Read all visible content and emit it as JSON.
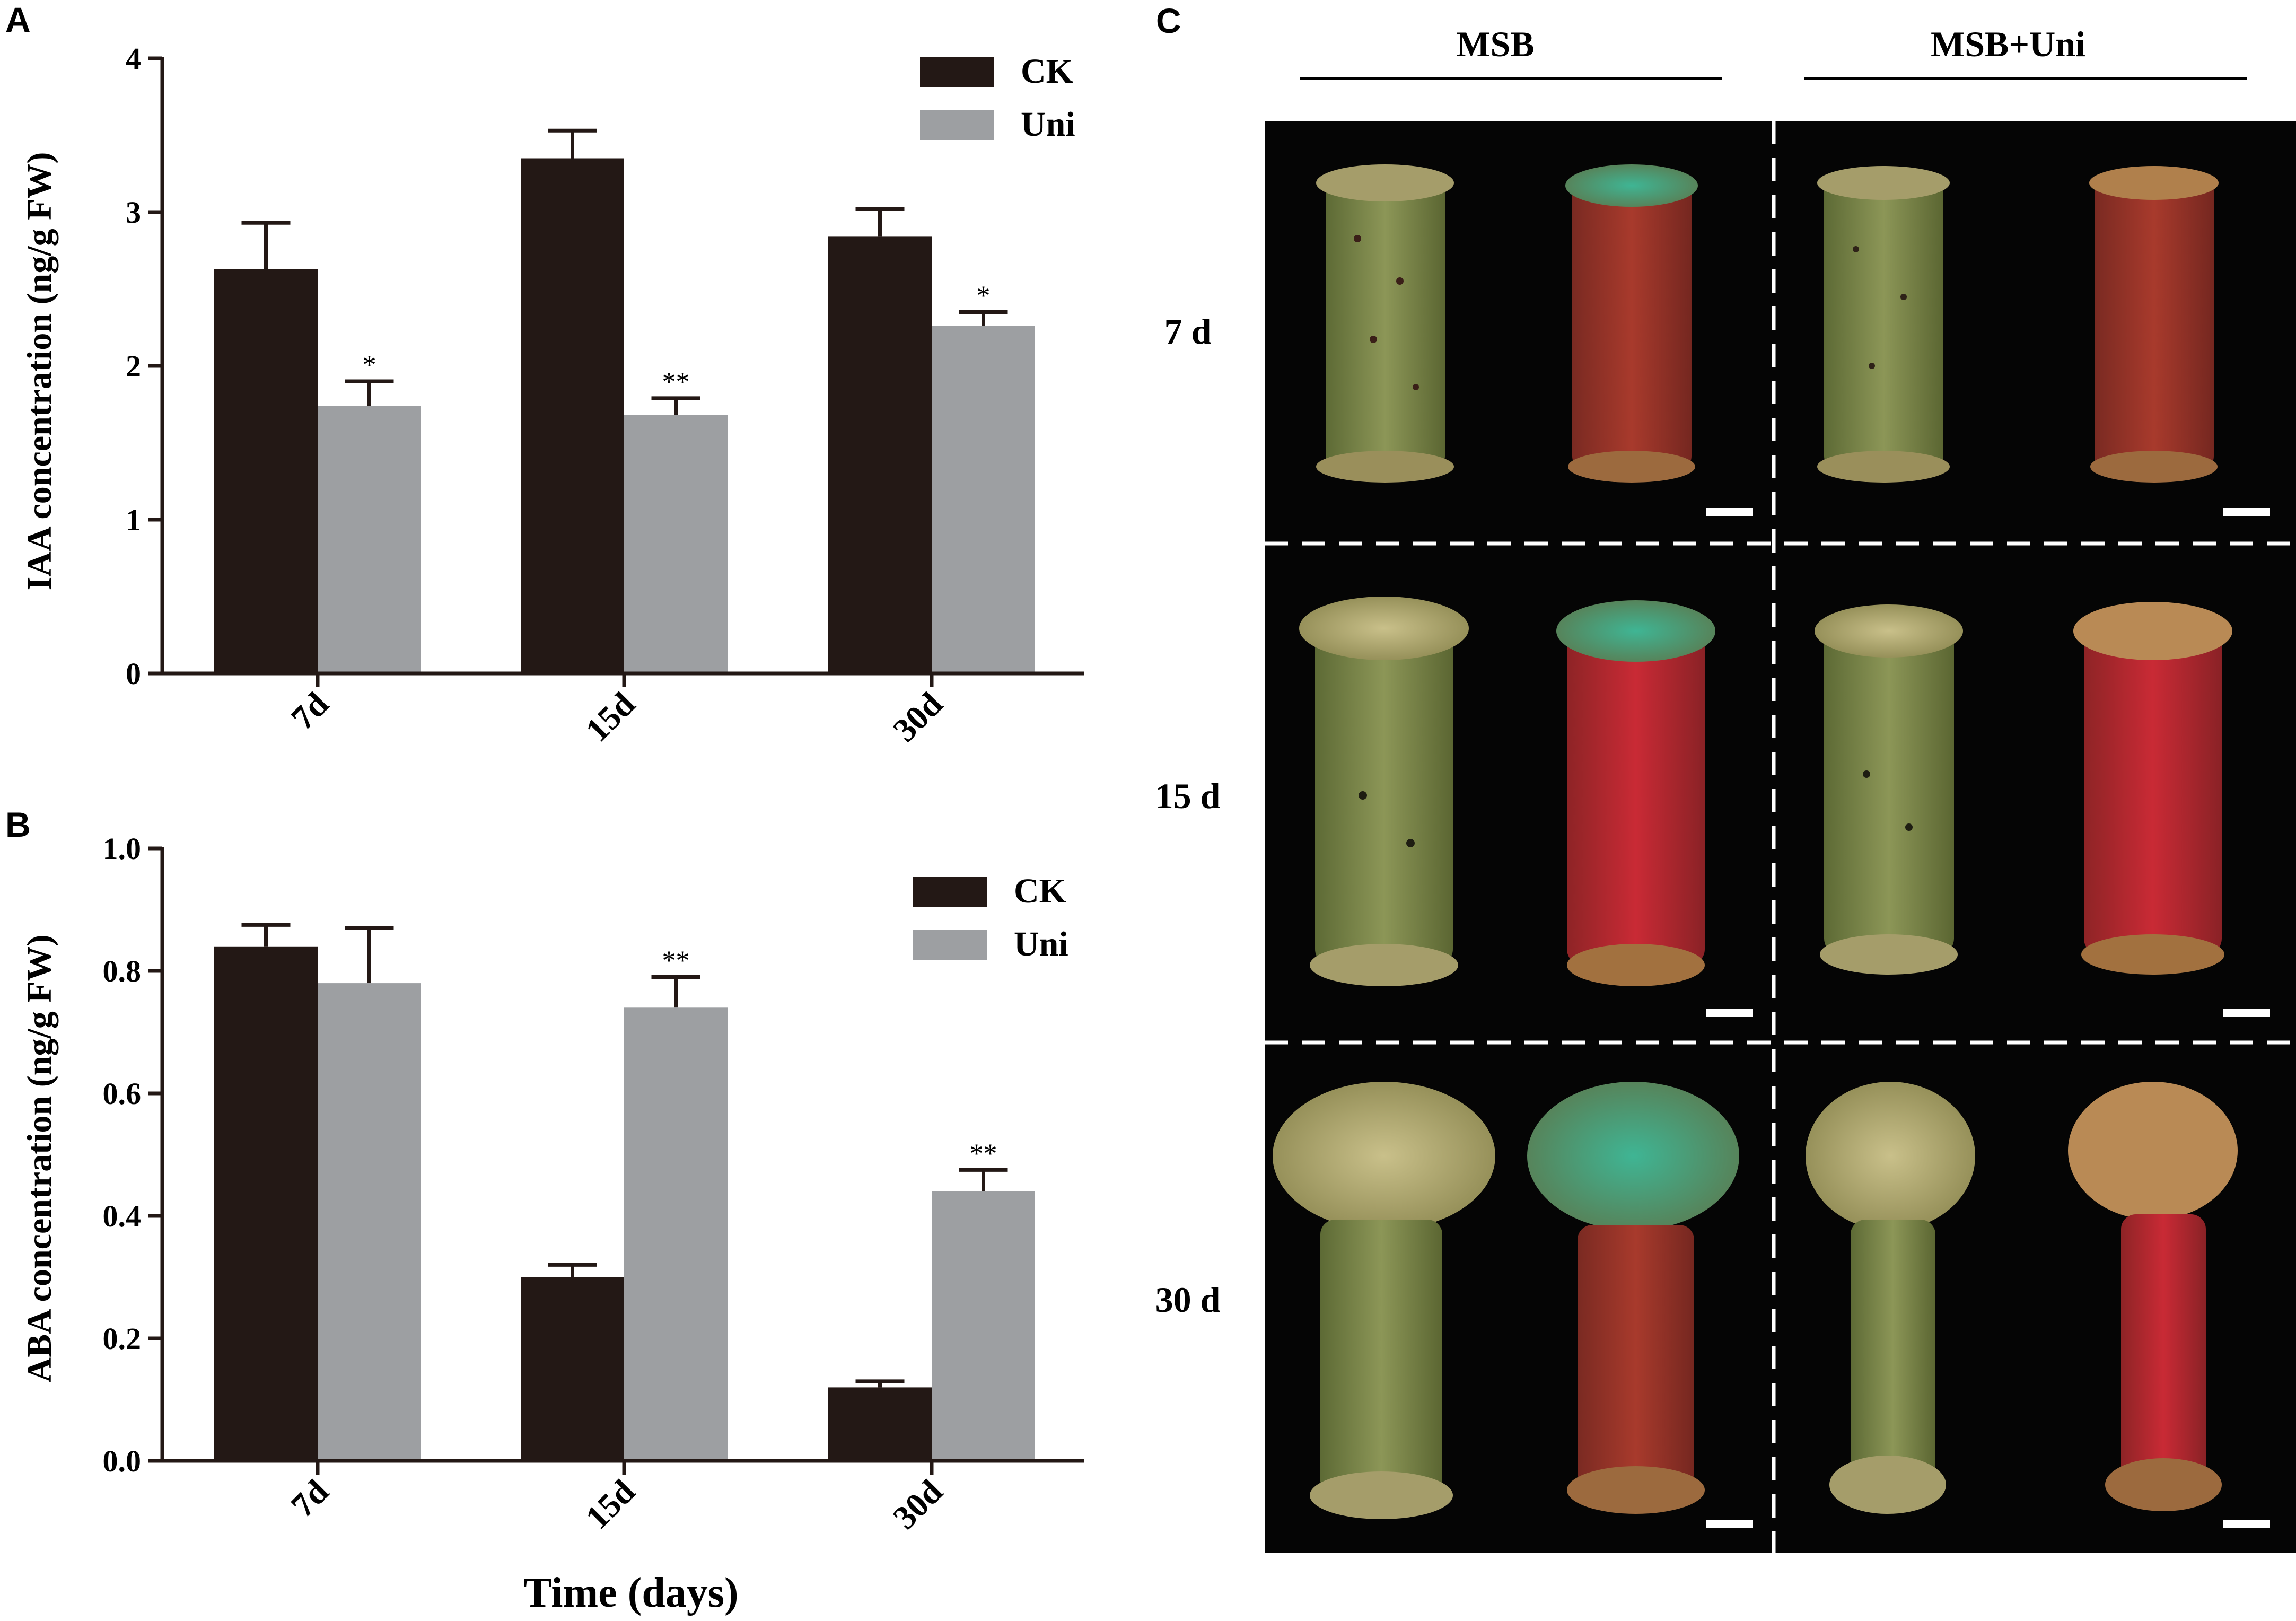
{
  "colors": {
    "ck": "#231815",
    "uni": "#9d9fa2",
    "photo_bg": "#050505",
    "divider": "#ffffff"
  },
  "chart_data": [
    {
      "panel": "A",
      "type": "bar",
      "categories": [
        "7d",
        "15d",
        "30d"
      ],
      "series": [
        {
          "name": "CK",
          "values": [
            2.63,
            3.35,
            2.84
          ],
          "errors": [
            0.3,
            0.18,
            0.18
          ],
          "sig": [
            "",
            "",
            ""
          ]
        },
        {
          "name": "Uni",
          "values": [
            1.74,
            1.68,
            2.26
          ],
          "errors": [
            0.16,
            0.11,
            0.09
          ],
          "sig": [
            "*",
            "**",
            "*"
          ]
        }
      ],
      "ylabel": "IAA concentration (ng/g FW)",
      "xlabel": "",
      "ylim": [
        0,
        4
      ],
      "yticks": [
        "0",
        "1",
        "2",
        "3",
        "4"
      ],
      "ytick_values": [
        0,
        1,
        2,
        3,
        4
      ],
      "legend": "top-right"
    },
    {
      "panel": "B",
      "type": "bar",
      "categories": [
        "7d",
        "15d",
        "30d"
      ],
      "series": [
        {
          "name": "CK",
          "values": [
            0.84,
            0.3,
            0.12
          ],
          "errors": [
            0.035,
            0.02,
            0.01
          ],
          "sig": [
            "",
            "",
            ""
          ]
        },
        {
          "name": "Uni",
          "values": [
            0.78,
            0.74,
            0.44
          ],
          "errors": [
            0.09,
            0.05,
            0.035
          ],
          "sig": [
            "",
            "**",
            "**"
          ]
        }
      ],
      "ylabel": "ABA concentration (ng/g FW)",
      "xlabel": "Time (days)",
      "ylim": [
        0,
        1.0
      ],
      "yticks": [
        "0.0",
        "0.2",
        "0.4",
        "0.6",
        "0.8",
        "1.0"
      ],
      "ytick_values": [
        0,
        0.2,
        0.4,
        0.6,
        0.8,
        1.0
      ],
      "legend": "top-right"
    }
  ],
  "panel_c": {
    "letter": "C",
    "columns": [
      "MSB",
      "MSB+Uni"
    ],
    "rows": [
      "7 d",
      "15 d",
      "30 d"
    ]
  }
}
